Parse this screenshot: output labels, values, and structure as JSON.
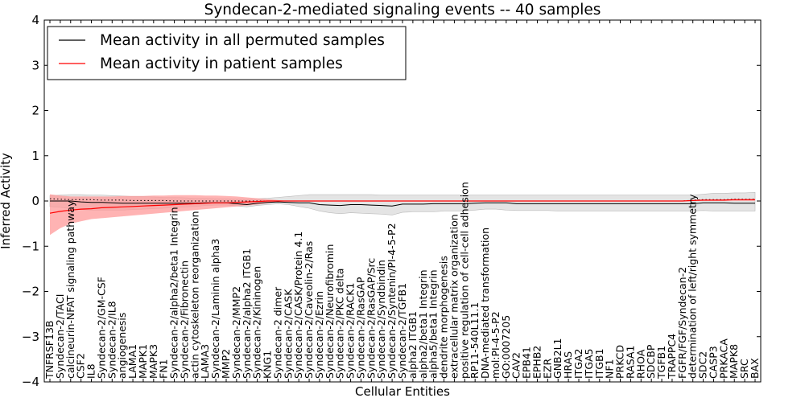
{
  "chart_data": {
    "type": "line",
    "title": "Syndecan-2-mediated signaling events -- 40 samples",
    "xlabel": "Cellular Entities",
    "ylabel": "Inferred Activity",
    "ylim": [
      -4,
      4
    ],
    "yticks": [
      "−4",
      "−3",
      "−2",
      "−1",
      "0",
      "1",
      "2",
      "3",
      "4"
    ],
    "categories": [
      "TNFRSF13B",
      "Syndecan-2/TACI",
      "calcineurin-NFAT signaling pathway",
      "CSF2",
      "IL8",
      "Syndecan-2/GM-CSF",
      "Syndecan-2/IL8",
      "angiogenesis",
      "LAMA1",
      "MAPK1",
      "MAPK3",
      "FN1",
      "Syndecan-2/alpha2/beta1 Integrin",
      "Syndecan-2/Fibronectin",
      "actin cytoskeleton reorganization",
      "LAMA3",
      "Syndecan-2/Laminin alpha3",
      "MMP2",
      "Syndecan-2/MMP2",
      "Syndecan-2/alpha2 ITGB1",
      "Syndecan-2/Kininogen",
      "KNG1",
      "Syndecan-2 dimer",
      "Syndecan-2/CASK",
      "Syndecan-2/CASK/Protein 4.1",
      "Syndecan-2/Caveolin-2/Ras",
      "Syndecan-2/Ezrin",
      "Syndecan-2/Neurofibromin",
      "Syndecan-2/PKC delta",
      "Syndecan-2/RACK1",
      "Syndecan-2/RasGAP",
      "Syndecan-2/RasGAP/Src",
      "Syndecan-2/Syndbindin",
      "Syndecan-2/Syntenin/PI-4-5-P2",
      "Syndecan-2/TGFB1",
      "alpha2 ITGB1",
      "alpha2/beta1 Integrin",
      "alpha5/beta1 Integrin",
      "dendrite morphogenesis",
      "extracellular matrix organization",
      "positive regulation of cell-cell adhesion",
      "RP11-540L11.1",
      "DNA-mediated transformation",
      "mol:PI-4-5-P2",
      "GO:0007205",
      "CAV2",
      "EPB41",
      "EPHB2",
      "EZR",
      "GNB2L1",
      "HRAS",
      "ITGA2",
      "ITGA5",
      "ITGB1",
      "NF1",
      "PRKCD",
      "RASA1",
      "RHOA",
      "SDCBP",
      "TGFB1",
      "TRAPPC4",
      "FGFR/FGF/Syndecan-2",
      "determination of left/right symmetry",
      "SDC2",
      "CASP3",
      "PRKACA",
      "MAPK8",
      "SRC",
      "BAX"
    ],
    "series": [
      {
        "name": "Mean activity in all permuted samples",
        "color": "#000000",
        "values": [
          0.0,
          0.0,
          0.0,
          -0.02,
          -0.03,
          -0.03,
          -0.04,
          -0.05,
          -0.05,
          -0.05,
          -0.05,
          -0.05,
          -0.05,
          -0.05,
          -0.05,
          -0.04,
          -0.04,
          -0.04,
          -0.06,
          -0.08,
          -0.05,
          -0.03,
          -0.02,
          -0.03,
          -0.04,
          -0.04,
          -0.08,
          -0.09,
          -0.1,
          -0.08,
          -0.08,
          -0.09,
          -0.1,
          -0.11,
          -0.07,
          -0.07,
          -0.07,
          -0.06,
          -0.06,
          -0.06,
          -0.06,
          -0.05,
          -0.04,
          -0.04,
          -0.04,
          -0.06,
          -0.06,
          -0.06,
          -0.06,
          -0.06,
          -0.06,
          -0.06,
          -0.06,
          -0.06,
          -0.06,
          -0.06,
          -0.06,
          -0.06,
          -0.06,
          -0.06,
          -0.06,
          -0.06,
          -0.06,
          -0.04,
          -0.04,
          -0.04,
          -0.05,
          -0.05,
          -0.05
        ],
        "band_low": [
          -0.12,
          -0.14,
          -0.17,
          -0.19,
          -0.2,
          -0.2,
          -0.2,
          -0.2,
          -0.19,
          -0.18,
          -0.17,
          -0.16,
          -0.14,
          -0.13,
          -0.12,
          -0.1,
          -0.09,
          -0.09,
          -0.11,
          -0.13,
          -0.1,
          -0.08,
          -0.06,
          -0.08,
          -0.12,
          -0.16,
          -0.22,
          -0.26,
          -0.28,
          -0.26,
          -0.27,
          -0.28,
          -0.29,
          -0.31,
          -0.25,
          -0.24,
          -0.24,
          -0.24,
          -0.22,
          -0.22,
          -0.22,
          -0.2,
          -0.18,
          -0.18,
          -0.2,
          -0.21,
          -0.21,
          -0.21,
          -0.21,
          -0.22,
          -0.22,
          -0.22,
          -0.22,
          -0.22,
          -0.22,
          -0.22,
          -0.22,
          -0.22,
          -0.22,
          -0.22,
          -0.22,
          -0.22,
          -0.22,
          -0.21,
          -0.22,
          -0.22,
          -0.22,
          -0.22,
          -0.22
        ],
        "band_high": [
          0.12,
          0.13,
          0.14,
          0.14,
          0.13,
          0.13,
          0.12,
          0.11,
          0.1,
          0.1,
          0.09,
          0.08,
          0.08,
          0.07,
          0.06,
          0.06,
          0.05,
          0.05,
          0.04,
          0.04,
          0.05,
          0.06,
          0.08,
          0.1,
          0.12,
          0.14,
          0.14,
          0.14,
          0.14,
          0.14,
          0.14,
          0.14,
          0.13,
          0.13,
          0.13,
          0.13,
          0.13,
          0.13,
          0.13,
          0.13,
          0.13,
          0.13,
          0.13,
          0.13,
          0.13,
          0.13,
          0.13,
          0.13,
          0.13,
          0.13,
          0.13,
          0.13,
          0.13,
          0.13,
          0.13,
          0.13,
          0.13,
          0.13,
          0.13,
          0.13,
          0.13,
          0.13,
          0.13,
          0.15,
          0.17,
          0.17,
          0.18,
          0.18,
          0.19
        ]
      },
      {
        "name": "Mean activity in patient samples",
        "color": "#ff0000",
        "band_color": "#ff9999",
        "values": [
          -0.27,
          -0.23,
          -0.2,
          -0.18,
          -0.17,
          -0.15,
          -0.14,
          -0.13,
          -0.12,
          -0.11,
          -0.1,
          -0.09,
          -0.08,
          -0.07,
          -0.06,
          -0.05,
          -0.04,
          -0.04,
          -0.03,
          -0.02,
          -0.01,
          0.0,
          0.0,
          0.0,
          0.0,
          0.0,
          0.0,
          0.0,
          0.0,
          0.0,
          0.0,
          0.0,
          0.0,
          0.0,
          0.0,
          0.0,
          0.0,
          0.0,
          0.0,
          0.0,
          0.0,
          0.0,
          0.0,
          0.0,
          0.0,
          0.0,
          0.0,
          0.0,
          0.0,
          0.0,
          0.0,
          0.0,
          0.0,
          0.0,
          0.0,
          0.0,
          0.0,
          0.0,
          0.0,
          0.0,
          0.0,
          0.0,
          0.01,
          0.02,
          0.02,
          0.02,
          0.03,
          0.03,
          0.03
        ],
        "band_low": [
          -0.75,
          -0.6,
          -0.5,
          -0.45,
          -0.4,
          -0.38,
          -0.36,
          -0.34,
          -0.32,
          -0.3,
          -0.28,
          -0.26,
          -0.24,
          -0.22,
          -0.2,
          -0.18,
          -0.16,
          -0.14,
          -0.12,
          -0.1,
          -0.08,
          -0.05,
          -0.02,
          0.0,
          0.0,
          0.0,
          0.0,
          0.0,
          0.0,
          0.0,
          0.0,
          0.0,
          0.0,
          0.0,
          0.0,
          0.0,
          0.0,
          0.0,
          0.0,
          0.0,
          0.0,
          0.0,
          0.0,
          0.0,
          0.0,
          0.0,
          0.0,
          0.0,
          0.0,
          0.0,
          0.0,
          0.0,
          0.0,
          0.0,
          0.0,
          0.0,
          0.0,
          0.0,
          0.0,
          0.0,
          0.0,
          0.0,
          0.0,
          0.0,
          0.0,
          0.0,
          0.0,
          0.0,
          0.0
        ],
        "band_high": [
          0.15,
          0.12,
          0.1,
          0.1,
          0.1,
          0.1,
          0.1,
          0.11,
          0.11,
          0.11,
          0.12,
          0.12,
          0.13,
          0.13,
          0.13,
          0.12,
          0.12,
          0.11,
          0.1,
          0.08,
          0.06,
          0.04,
          0.02,
          0.0,
          0.0,
          0.0,
          0.0,
          0.0,
          0.0,
          0.0,
          0.0,
          0.0,
          0.0,
          0.0,
          0.0,
          0.0,
          0.0,
          0.0,
          0.0,
          0.0,
          0.0,
          0.0,
          0.0,
          0.0,
          0.0,
          0.0,
          0.0,
          0.0,
          0.0,
          0.0,
          0.0,
          0.0,
          0.0,
          0.0,
          0.0,
          0.0,
          0.0,
          0.0,
          0.0,
          0.0,
          0.0,
          0.0,
          0.01,
          0.02,
          0.03,
          0.03,
          0.04,
          0.04,
          0.05
        ]
      }
    ],
    "reference_line": {
      "name": "dotted reference",
      "color": "#000000",
      "values": [
        0.05,
        0.04,
        0.03,
        0.03,
        0.03,
        0.02,
        0.02,
        0.02,
        0.01,
        0.01,
        0.01,
        0.01,
        0.0,
        0.0,
        0.0,
        0.0,
        0.0,
        0.0,
        0.0,
        0.0,
        0.0,
        0.0,
        0.0,
        0.0,
        0.0,
        0.0,
        0.0,
        0.0,
        0.0,
        0.0,
        0.0,
        0.0,
        0.0,
        0.0,
        0.0,
        0.0,
        0.0,
        0.0,
        0.0,
        0.0,
        0.0,
        0.0,
        0.0,
        0.0,
        0.0,
        0.0,
        0.0,
        0.0,
        0.0,
        0.0,
        0.0,
        0.0,
        0.0,
        0.0,
        0.0,
        0.0,
        0.0,
        0.0,
        0.0,
        0.0,
        0.0,
        0.0,
        0.02,
        0.03,
        0.03,
        0.03,
        0.04,
        0.04,
        0.04
      ]
    },
    "legend": {
      "position": "top-left",
      "entries": [
        "Mean activity in all permuted samples",
        "Mean activity in patient samples"
      ]
    },
    "grid": false
  }
}
